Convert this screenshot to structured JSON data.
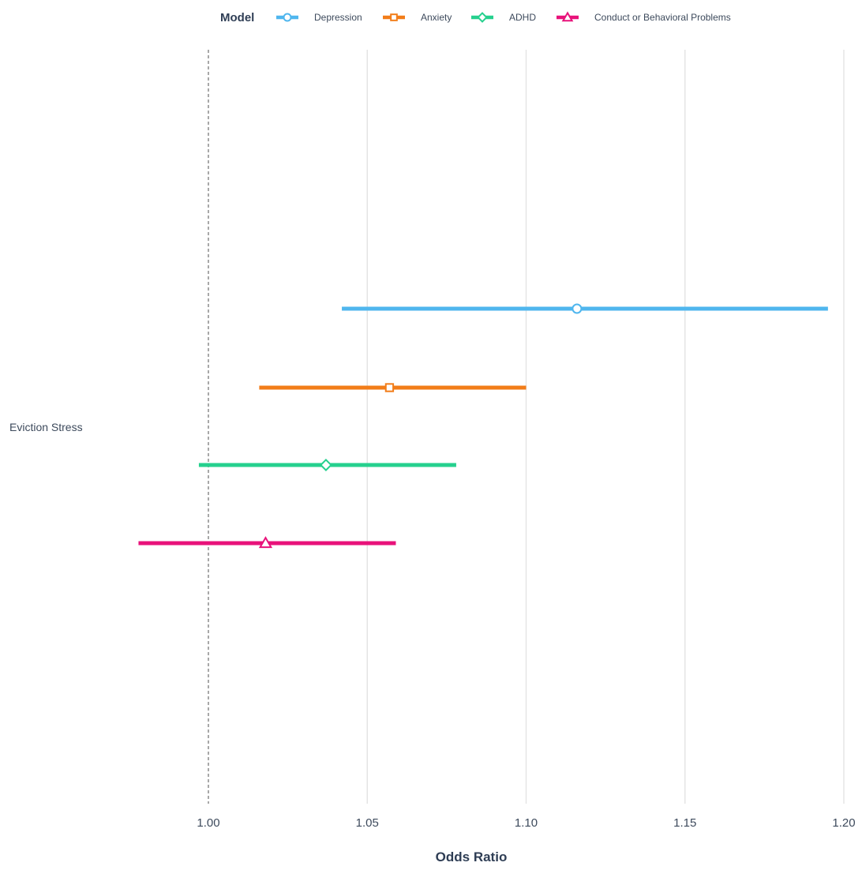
{
  "chart_data": {
    "type": "forest",
    "title": "",
    "xlabel": "Odds Ratio",
    "ylabel": "",
    "xlim": [
      0.97,
      1.2
    ],
    "x_ticks": [
      "1.00",
      "1.05",
      "1.10",
      "1.15",
      "1.20"
    ],
    "reference_line": 1.0,
    "grid": "vertical major gridlines",
    "categories": [
      "Eviction Stress"
    ],
    "legend": {
      "title": "Model",
      "placement": "top"
    },
    "series": [
      {
        "name": "Depression",
        "estimate": 1.116,
        "ci_low": 1.042,
        "ci_high": 1.195,
        "color": "#4fb6ee",
        "marker": "circle"
      },
      {
        "name": "Anxiety",
        "estimate": 1.057,
        "ci_low": 1.016,
        "ci_high": 1.1,
        "color": "#f27d19",
        "marker": "square"
      },
      {
        "name": "ADHD",
        "estimate": 1.037,
        "ci_low": 0.997,
        "ci_high": 1.078,
        "color": "#26d08e",
        "marker": "diamond"
      },
      {
        "name": "Conduct or Behavioral Problems",
        "estimate": 1.018,
        "ci_low": 0.978,
        "ci_high": 1.059,
        "color": "#e8127a",
        "marker": "triangle"
      }
    ]
  }
}
